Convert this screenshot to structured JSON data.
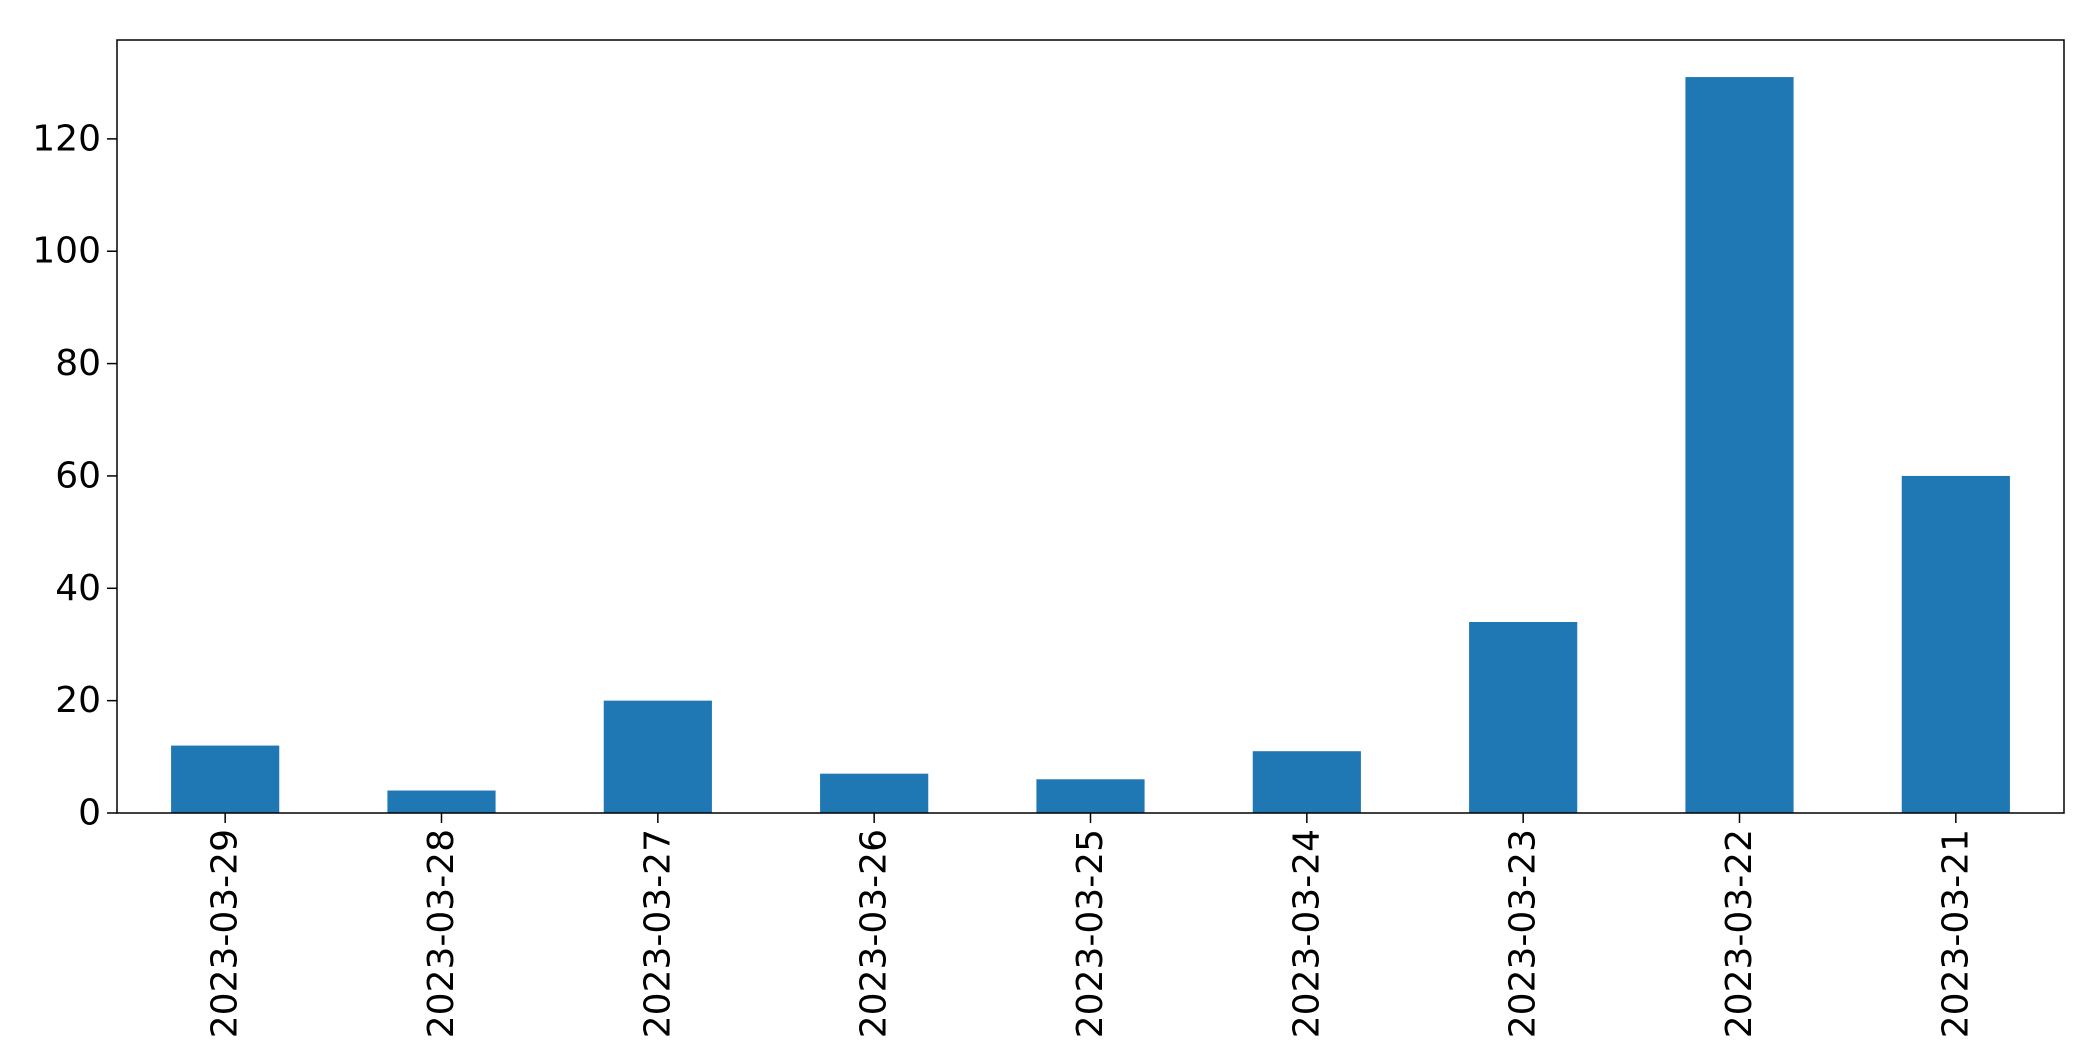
{
  "chart_data": {
    "type": "bar",
    "title": "",
    "xlabel": "",
    "ylabel": "",
    "categories": [
      "2023-03-29",
      "2023-03-28",
      "2023-03-27",
      "2023-03-26",
      "2023-03-25",
      "2023-03-24",
      "2023-03-23",
      "2023-03-22",
      "2023-03-21"
    ],
    "values": [
      12,
      4,
      20,
      7,
      6,
      11,
      34,
      131,
      60
    ],
    "ylim": [
      0,
      137.6
    ],
    "yticks": [
      0,
      20,
      40,
      60,
      80,
      100,
      120
    ],
    "grid": false,
    "legend": "none",
    "bar_color": "#1f77b4",
    "x_tick_rotation": "vertical"
  }
}
